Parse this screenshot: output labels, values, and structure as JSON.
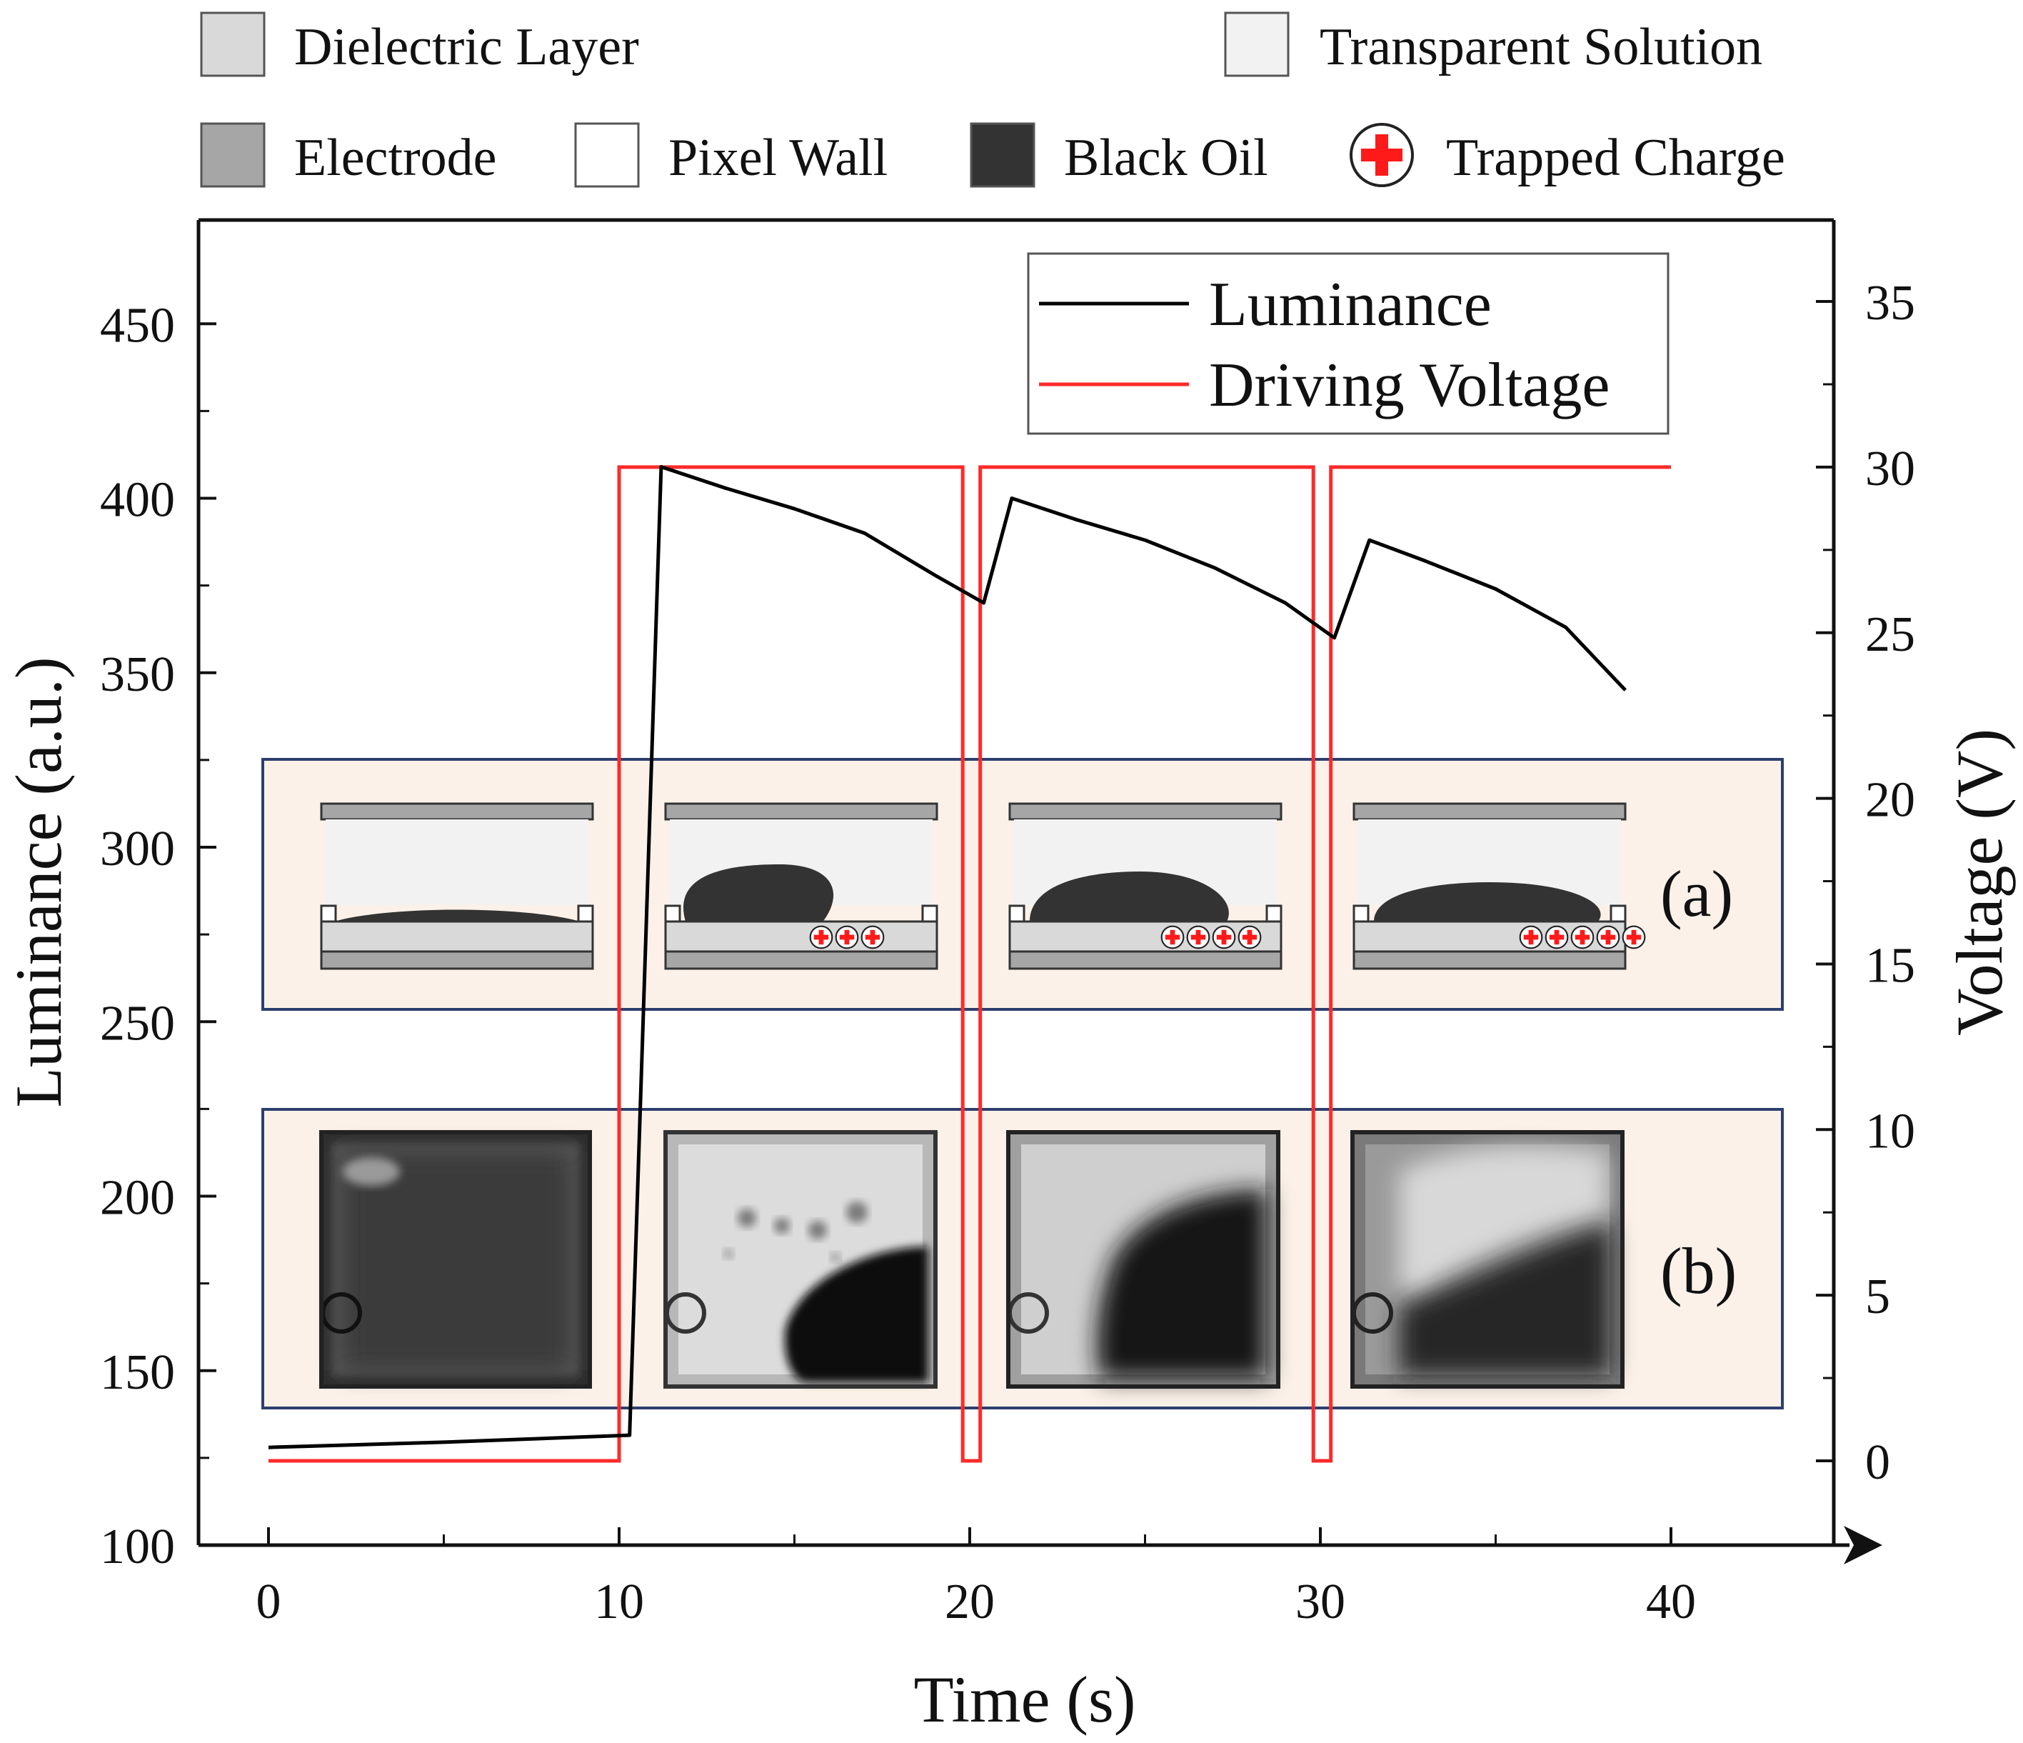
{
  "legend_top": {
    "row1": [
      {
        "label": "Dielectric Layer",
        "swatch": "#d9d9d9"
      },
      {
        "label": "Transparent Solution",
        "swatch": "#f2f2f2"
      }
    ],
    "row2": [
      {
        "label": "Electrode",
        "swatch": "#a6a6a6"
      },
      {
        "label": "Pixel Wall",
        "swatch": "#ffffff"
      },
      {
        "label": "Black Oil",
        "swatch": "#333333"
      },
      {
        "label": "Trapped Charge",
        "swatch": "trapped-charge"
      }
    ]
  },
  "chart_data": {
    "type": "line",
    "xlabel": "Time (s)",
    "ylabel_left": "Luminance (a.u.)",
    "ylabel_right": "Voltage (V)",
    "xlim": [
      -2,
      44
    ],
    "ylim_left": [
      100,
      475
    ],
    "ylim_right": [
      -2.5,
      37.2
    ],
    "x_ticks": [
      0,
      10,
      20,
      30,
      40
    ],
    "y_left_ticks": [
      100,
      150,
      200,
      250,
      300,
      350,
      400,
      450
    ],
    "y_right_ticks": [
      0,
      5,
      10,
      15,
      20,
      25,
      30,
      35
    ],
    "series": [
      {
        "name": "Luminance",
        "axis": "left",
        "color": "#000000",
        "x": [
          0,
          5,
          10.3,
          11.2,
          13,
          15,
          17,
          19,
          20.4,
          21.2,
          23,
          25,
          27,
          29,
          30.4,
          31.4,
          33,
          35,
          37,
          38.7
        ],
        "y": [
          128,
          129.5,
          131.5,
          409,
          403,
          397,
          390,
          378,
          370,
          400,
          394,
          388,
          380,
          370,
          360,
          388,
          382,
          374,
          363,
          345
        ]
      },
      {
        "name": "Driving Voltage",
        "axis": "right",
        "color": "#ff2a2a",
        "x": [
          0,
          10,
          10,
          19.8,
          19.8,
          20.3,
          20.3,
          29.8,
          29.8,
          30.3,
          30.3,
          40
        ],
        "y": [
          0,
          0,
          30,
          30,
          0,
          0,
          30,
          30,
          0,
          0,
          30,
          30
        ]
      }
    ],
    "legend": {
      "position": "top-right",
      "entries": [
        "Luminance",
        "Driving Voltage"
      ]
    },
    "inset_labels": {
      "a": "(a)",
      "b": "(b)"
    },
    "trapped_charges_per_state": [
      0,
      3,
      4,
      5
    ]
  }
}
